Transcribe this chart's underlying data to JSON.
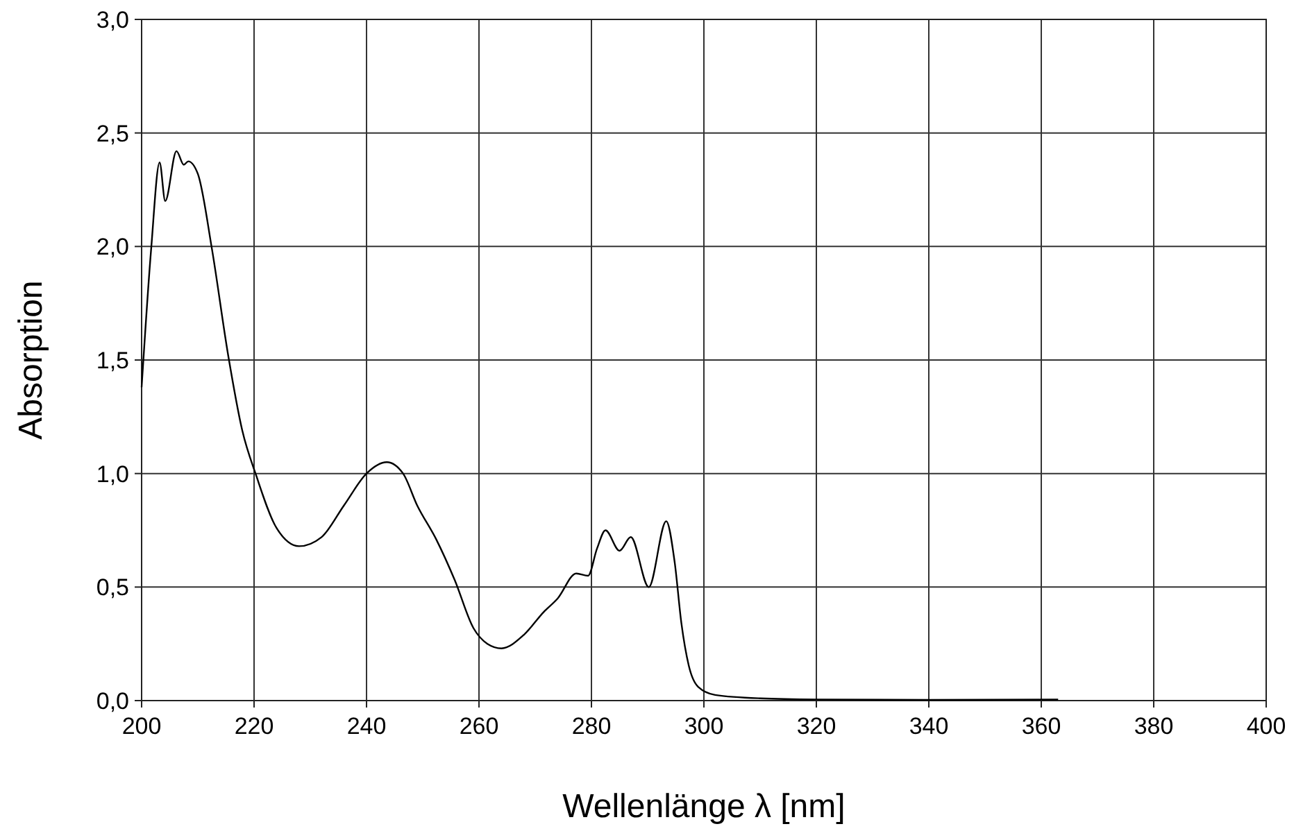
{
  "chart_data": {
    "type": "line",
    "xlabel": "Wellenlänge λ [nm]",
    "ylabel": "Absorption",
    "xlim": [
      200,
      400
    ],
    "ylim": [
      0,
      3
    ],
    "xticks": [
      200,
      220,
      240,
      260,
      280,
      300,
      320,
      340,
      360,
      380,
      400
    ],
    "yticks": [
      {
        "value": 0,
        "label": "0,0"
      },
      {
        "value": 0.5,
        "label": "0,5"
      },
      {
        "value": 1,
        "label": "1,0"
      },
      {
        "value": 1.5,
        "label": "1,5"
      },
      {
        "value": 2,
        "label": "2,0"
      },
      {
        "value": 2.5,
        "label": "2,5"
      },
      {
        "value": 3,
        "label": "3,0"
      }
    ],
    "grid": true,
    "marker": "none",
    "line_style": "solid",
    "series": [
      {
        "color": "#000000",
        "x": [
          200,
          201.7,
          203.2,
          204.2,
          206.2,
          207.5,
          208.3,
          210,
          212.5,
          215.4,
          217.9,
          220.4,
          224,
          228,
          232,
          236,
          240,
          243.6,
          246.5,
          249,
          252.4,
          255.7,
          259,
          261.5,
          264,
          268,
          271.5,
          274,
          277.3,
          279.4,
          281,
          282.5,
          285,
          287,
          290.2,
          293.3,
          294.8,
          296,
          297.3,
          299,
          302,
          310,
          320,
          340,
          363
        ],
        "values": [
          1.38,
          1.99,
          2.37,
          2.2,
          2.42,
          2.36,
          2.375,
          2.32,
          1.99,
          1.52,
          1.19,
          0.99,
          0.76,
          0.68,
          0.72,
          0.86,
          1.0,
          1.05,
          1.0,
          0.86,
          0.71,
          0.53,
          0.32,
          0.25,
          0.23,
          0.29,
          0.39,
          0.45,
          0.56,
          0.55,
          0.67,
          0.75,
          0.66,
          0.72,
          0.5,
          0.79,
          0.61,
          0.34,
          0.155,
          0.06,
          0.025,
          0.01,
          0.005,
          0.003,
          0.005
        ]
      }
    ]
  }
}
